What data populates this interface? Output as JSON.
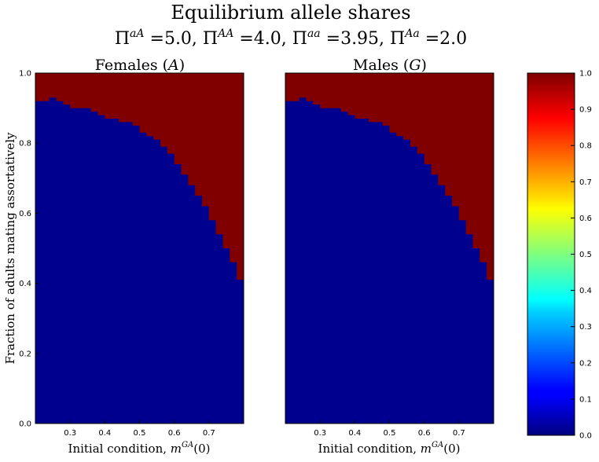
{
  "figure": {
    "title": "Equilibrium allele shares",
    "subtitle": "Π^aA =5.0, Π^AA =4.0, Π^aa =3.95, Π^Aa =2.0"
  },
  "chart_data": [
    {
      "type": "heatmap",
      "title": "Females (A)",
      "xlabel": "Initial condition, m^GA(0)",
      "ylabel": "Fraction of adults mating assortatively",
      "xlim": [
        0.2,
        0.8
      ],
      "ylim": [
        0.0,
        1.0
      ],
      "xticks": [
        "0.3",
        "0.4",
        "0.5",
        "0.6",
        "0.7"
      ],
      "yticks": [
        "0.0",
        "0.2",
        "0.4",
        "0.6",
        "0.8",
        "1.0"
      ],
      "value_below_boundary": 0.0,
      "value_above_boundary": 1.0,
      "boundary": {
        "x": [
          0.2,
          0.22,
          0.24,
          0.26,
          0.28,
          0.3,
          0.32,
          0.34,
          0.36,
          0.38,
          0.4,
          0.42,
          0.44,
          0.46,
          0.48,
          0.5,
          0.52,
          0.54,
          0.56,
          0.58,
          0.6,
          0.62,
          0.64,
          0.66,
          0.68,
          0.7,
          0.72,
          0.74,
          0.76,
          0.78,
          0.8
        ],
        "y": [
          0.92,
          0.92,
          0.93,
          0.92,
          0.91,
          0.9,
          0.9,
          0.9,
          0.89,
          0.88,
          0.87,
          0.87,
          0.86,
          0.86,
          0.85,
          0.83,
          0.82,
          0.81,
          0.79,
          0.77,
          0.74,
          0.71,
          0.68,
          0.65,
          0.62,
          0.58,
          0.54,
          0.5,
          0.46,
          0.41,
          0.37
        ]
      }
    },
    {
      "type": "heatmap",
      "title": "Males (G)",
      "xlabel": "Initial condition, m^GA(0)",
      "ylabel": "",
      "xlim": [
        0.2,
        0.8
      ],
      "ylim": [
        0.0,
        1.0
      ],
      "xticks": [
        "0.3",
        "0.4",
        "0.5",
        "0.6",
        "0.7"
      ],
      "value_below_boundary": 0.0,
      "value_above_boundary": 1.0,
      "boundary": {
        "x": [
          0.2,
          0.22,
          0.24,
          0.26,
          0.28,
          0.3,
          0.32,
          0.34,
          0.36,
          0.38,
          0.4,
          0.42,
          0.44,
          0.46,
          0.48,
          0.5,
          0.52,
          0.54,
          0.56,
          0.58,
          0.6,
          0.62,
          0.64,
          0.66,
          0.68,
          0.7,
          0.72,
          0.74,
          0.76,
          0.78,
          0.8
        ],
        "y": [
          0.92,
          0.92,
          0.93,
          0.92,
          0.91,
          0.9,
          0.9,
          0.9,
          0.89,
          0.88,
          0.87,
          0.87,
          0.86,
          0.86,
          0.85,
          0.83,
          0.82,
          0.81,
          0.79,
          0.77,
          0.74,
          0.71,
          0.68,
          0.65,
          0.62,
          0.58,
          0.54,
          0.5,
          0.46,
          0.41,
          0.37
        ]
      }
    }
  ],
  "colorbar": {
    "colormap": "jet",
    "range": [
      0.0,
      1.0
    ],
    "ticks": [
      "0.0",
      "0.1",
      "0.2",
      "0.3",
      "0.4",
      "0.5",
      "0.6",
      "0.7",
      "0.8",
      "0.9",
      "1.0"
    ]
  },
  "colors": {
    "low": "#00008f",
    "high": "#800000"
  }
}
